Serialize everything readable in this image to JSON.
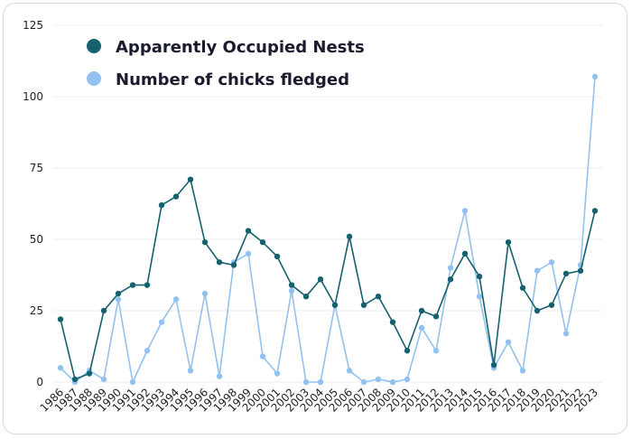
{
  "chart_data": {
    "type": "line",
    "title": "",
    "xlabel": "",
    "ylabel": "",
    "ylim": [
      0,
      125
    ],
    "yticks": [
      0,
      25,
      50,
      75,
      100,
      125
    ],
    "grid": "horizontal",
    "legend_position": "top-left",
    "categories": [
      "1986",
      "1987",
      "1988",
      "1989",
      "1990",
      "1991",
      "1992",
      "1993",
      "1994",
      "1995",
      "1996",
      "1997",
      "1998",
      "1999",
      "2000",
      "2001",
      "2002",
      "2003",
      "2004",
      "2005",
      "2006",
      "2007",
      "2008",
      "2009",
      "2010",
      "2011",
      "2012",
      "2013",
      "2014",
      "2015",
      "2016",
      "2017",
      "2018",
      "2019",
      "2020",
      "2021",
      "2022",
      "2023"
    ],
    "series": [
      {
        "name": "Apparently Occupied Nests",
        "color": "#15616d",
        "values": [
          22,
          1,
          3,
          25,
          31,
          34,
          34,
          62,
          65,
          71,
          49,
          42,
          41,
          53,
          49,
          44,
          34,
          30,
          36,
          27,
          51,
          27,
          30,
          21,
          11,
          25,
          23,
          36,
          45,
          37,
          6,
          49,
          33,
          25,
          27,
          38,
          39,
          60
        ]
      },
      {
        "name": "Number of chicks fledged",
        "color": "#94c2ef",
        "values": [
          5,
          0,
          4,
          1,
          29,
          0,
          11,
          21,
          29,
          4,
          31,
          2,
          42,
          45,
          9,
          3,
          32,
          0,
          0,
          27,
          4,
          0,
          1,
          0,
          1,
          19,
          11,
          40,
          60,
          30,
          5,
          14,
          4,
          39,
          42,
          17,
          41,
          107
        ]
      }
    ]
  }
}
